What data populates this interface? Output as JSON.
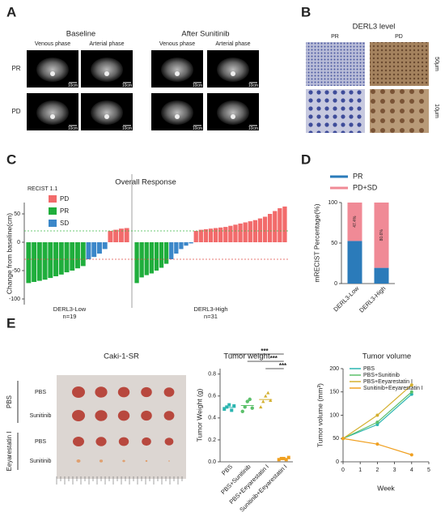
{
  "panels": {
    "A": {
      "label": "A",
      "baseline": "Baseline",
      "after": "After  Sunitinib",
      "columns": [
        "Venous phase",
        "Arterial phase",
        "Venous phase",
        "Arterial phase"
      ],
      "rows": [
        "PR",
        "PD"
      ],
      "scale_bar": "10cm"
    },
    "B": {
      "label": "B",
      "title": "DERL3 level",
      "columns": [
        "PR",
        "PD"
      ],
      "scale_bars": [
        "50μm",
        "10μm"
      ]
    },
    "C": {
      "label": "C"
    },
    "D": {
      "label": "D"
    },
    "E": {
      "label": "E",
      "title": "Caki-1-SR",
      "groups": [
        "PBS",
        "Eeyarestatin I"
      ],
      "rows": [
        "PBS",
        "Sunitinib",
        "PBS",
        "Sunitinib"
      ]
    }
  },
  "chart_data": [
    {
      "type": "waterfall",
      "title": "Overall Response",
      "ylabel": "Change from baseline(cm)",
      "legend_title": "RECIST 1.1",
      "series": [
        {
          "name": "PD",
          "color": "#f26b6b"
        },
        {
          "name": "PR",
          "color": "#1fae3c"
        },
        {
          "name": "SD",
          "color": "#3b87c9"
        }
      ],
      "groups": [
        {
          "name": "DERL3-Low",
          "n": "n=19",
          "values": [
            -72,
            -70,
            -68,
            -66,
            -63,
            -60,
            -57,
            -53,
            -50,
            -46,
            -42,
            -30,
            -26,
            -20,
            -12,
            20,
            22,
            24,
            25
          ],
          "response": [
            "PR",
            "PR",
            "PR",
            "PR",
            "PR",
            "PR",
            "PR",
            "PR",
            "PR",
            "PR",
            "PR",
            "SD",
            "SD",
            "SD",
            "SD",
            "PD",
            "PD",
            "PD",
            "PD"
          ]
        },
        {
          "name": "DERL3-High",
          "n": "n=31",
          "values": [
            -72,
            -62,
            -58,
            -55,
            -50,
            -45,
            -38,
            -30,
            -20,
            -12,
            -6,
            -2,
            20,
            22,
            23,
            24,
            25,
            26,
            27,
            29,
            31,
            33,
            35,
            37,
            39,
            42,
            45,
            50,
            55,
            60,
            63
          ],
          "response": [
            "PR",
            "PR",
            "PR",
            "PR",
            "PR",
            "PR",
            "PR",
            "SD",
            "SD",
            "SD",
            "SD",
            "SD",
            "PD",
            "PD",
            "PD",
            "PD",
            "PD",
            "PD",
            "PD",
            "PD",
            "PD",
            "PD",
            "PD",
            "PD",
            "PD",
            "PD",
            "PD",
            "PD",
            "PD",
            "PD",
            "PD"
          ]
        }
      ],
      "ylim": [
        -110,
        70
      ],
      "yticks": [
        -100,
        -50,
        0,
        50
      ],
      "reference_lines": [
        {
          "value": 20,
          "color": "#3cb84a"
        },
        {
          "value": -30,
          "color": "#e0504a"
        }
      ]
    },
    {
      "type": "stacked_bar",
      "ylabel": "mRECIST  Percentage(%)",
      "categories": [
        "DERL3-Low",
        "DERL3-High"
      ],
      "series": [
        {
          "name": "PR",
          "color": "#2b7bba",
          "values": [
            52.6,
            19.4
          ]
        },
        {
          "name": "PD+SD",
          "color": "#f08a96",
          "values": [
            47.4,
            80.6
          ],
          "value_labels": [
            "47.4%",
            "80.6%"
          ]
        }
      ],
      "ylim": [
        0,
        100
      ],
      "yticks": [
        0,
        50,
        100
      ]
    },
    {
      "type": "dot",
      "title": "Tumor weight",
      "ylabel": "Tumor Weight (g)",
      "categories": [
        "PBS",
        "PBS+Sunitinib",
        "PBS+Eeyarestatin I",
        "Sunitinib+Eeyarestatin I"
      ],
      "colors": [
        "#2bb5b0",
        "#5cc06b",
        "#d4b030",
        "#f0a020"
      ],
      "values": [
        [
          0.48,
          0.5,
          0.52,
          0.47,
          0.51
        ],
        [
          0.46,
          0.5,
          0.55,
          0.57,
          0.49
        ],
        [
          0.5,
          0.55,
          0.6,
          0.63,
          0.56
        ],
        [
          0.02,
          0.03,
          0.03,
          0.02,
          0.04
        ]
      ],
      "significance": [
        "***",
        "***",
        "***"
      ],
      "ylim": [
        0,
        0.85
      ],
      "yticks": [
        {
          "value": 0,
          "label": "0.0"
        },
        0.2,
        0.4,
        0.6,
        0.8
      ]
    },
    {
      "type": "line",
      "title": "Tumor volume",
      "ylabel": "Tumor volume (mm³)",
      "xlabel": "Week",
      "x": [
        0,
        2,
        4
      ],
      "series": [
        {
          "name": "PBS",
          "color": "#2bb5b0",
          "values": [
            50,
            80,
            145
          ]
        },
        {
          "name": "PBS+Sunitinib",
          "color": "#5cc06b",
          "values": [
            50,
            85,
            150
          ]
        },
        {
          "name": "PBS+Eeyarestatin I",
          "color": "#d4b030",
          "values": [
            50,
            100,
            165
          ]
        },
        {
          "name": "Sunitinib+Eeyarestatin I",
          "color": "#f0a020",
          "values": [
            50,
            38,
            15
          ]
        }
      ],
      "xlim": [
        0,
        5
      ],
      "xticks": [
        0,
        1,
        2,
        3,
        4,
        5
      ],
      "ylim": [
        0,
        200
      ],
      "yticks": [
        0,
        50,
        100,
        150,
        200
      ]
    }
  ]
}
